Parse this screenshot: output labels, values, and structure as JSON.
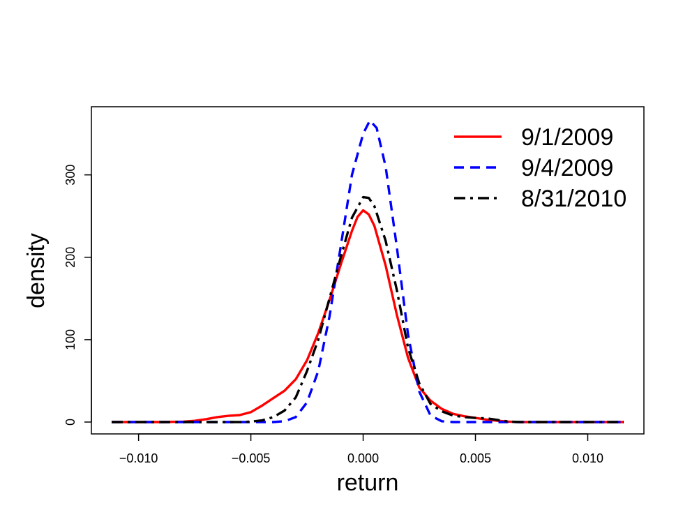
{
  "chart_data": {
    "type": "line",
    "title": "",
    "xlabel": "return",
    "ylabel": "density",
    "xlim": [
      -0.0112,
      0.0116
    ],
    "ylim": [
      0,
      370
    ],
    "x_ticks": [
      -0.01,
      -0.005,
      0.0,
      0.005,
      0.01
    ],
    "x_tick_labels": [
      "−0.010",
      "−0.005",
      "0.000",
      "0.005",
      "0.010"
    ],
    "y_ticks": [
      0,
      100,
      200,
      300
    ],
    "y_tick_labels": [
      "0",
      "100",
      "200",
      "300"
    ],
    "grid": false,
    "legend_position": "top-right",
    "series": [
      {
        "name": "9/1/2009",
        "color": "#ff0000",
        "dash": "solid",
        "points": [
          [
            -0.0112,
            0
          ],
          [
            -0.009,
            0
          ],
          [
            -0.008,
            0.5
          ],
          [
            -0.0075,
            1.5
          ],
          [
            -0.007,
            3.5
          ],
          [
            -0.0065,
            6
          ],
          [
            -0.006,
            7.5
          ],
          [
            -0.0055,
            8.5
          ],
          [
            -0.005,
            12
          ],
          [
            -0.0045,
            20
          ],
          [
            -0.004,
            29
          ],
          [
            -0.0035,
            38
          ],
          [
            -0.003,
            52
          ],
          [
            -0.0025,
            75
          ],
          [
            -0.002,
            108
          ],
          [
            -0.0015,
            148
          ],
          [
            -0.001,
            191
          ],
          [
            -0.0005,
            232
          ],
          [
            -0.00025,
            249
          ],
          [
            0.0,
            257
          ],
          [
            0.00025,
            252
          ],
          [
            0.0005,
            238
          ],
          [
            0.001,
            190
          ],
          [
            0.0015,
            130
          ],
          [
            0.002,
            78
          ],
          [
            0.0025,
            42
          ],
          [
            0.003,
            26
          ],
          [
            0.0035,
            16
          ],
          [
            0.004,
            10
          ],
          [
            0.0045,
            7
          ],
          [
            0.005,
            5
          ],
          [
            0.0055,
            3
          ],
          [
            0.006,
            1.5
          ],
          [
            0.0065,
            0.5
          ],
          [
            0.007,
            0
          ],
          [
            0.0116,
            0
          ]
        ]
      },
      {
        "name": "9/4/2009",
        "color": "#0000ff",
        "dash": "dashed",
        "points": [
          [
            -0.0112,
            0
          ],
          [
            -0.004,
            0
          ],
          [
            -0.0035,
            1
          ],
          [
            -0.003,
            6
          ],
          [
            -0.0025,
            24
          ],
          [
            -0.002,
            62
          ],
          [
            -0.0015,
            128
          ],
          [
            -0.001,
            213
          ],
          [
            -0.0005,
            300
          ],
          [
            0.0,
            350
          ],
          [
            0.0003,
            366
          ],
          [
            0.0006,
            357
          ],
          [
            0.001,
            310
          ],
          [
            0.0015,
            212
          ],
          [
            0.002,
            106
          ],
          [
            0.0025,
            37
          ],
          [
            0.003,
            8
          ],
          [
            0.0035,
            1
          ],
          [
            0.004,
            0
          ],
          [
            0.0116,
            0
          ]
        ]
      },
      {
        "name": "8/31/2010",
        "color": "#000000",
        "dash": "dashdot",
        "points": [
          [
            -0.0112,
            0
          ],
          [
            -0.0055,
            0
          ],
          [
            -0.005,
            0.5
          ],
          [
            -0.0045,
            2
          ],
          [
            -0.004,
            6
          ],
          [
            -0.0035,
            14
          ],
          [
            -0.003,
            30
          ],
          [
            -0.0025,
            62
          ],
          [
            -0.002,
            100
          ],
          [
            -0.0015,
            150
          ],
          [
            -0.001,
            200
          ],
          [
            -0.0005,
            248
          ],
          [
            0.0,
            273
          ],
          [
            0.00025,
            272
          ],
          [
            0.0005,
            262
          ],
          [
            0.001,
            220
          ],
          [
            0.0015,
            160
          ],
          [
            0.002,
            90
          ],
          [
            0.0025,
            47
          ],
          [
            0.003,
            22
          ],
          [
            0.0035,
            13
          ],
          [
            0.004,
            8
          ],
          [
            0.0045,
            6
          ],
          [
            0.005,
            5
          ],
          [
            0.0055,
            4.5
          ],
          [
            0.006,
            2.5
          ],
          [
            0.0065,
            0.5
          ],
          [
            0.007,
            0
          ],
          [
            0.0116,
            0
          ]
        ]
      }
    ]
  }
}
